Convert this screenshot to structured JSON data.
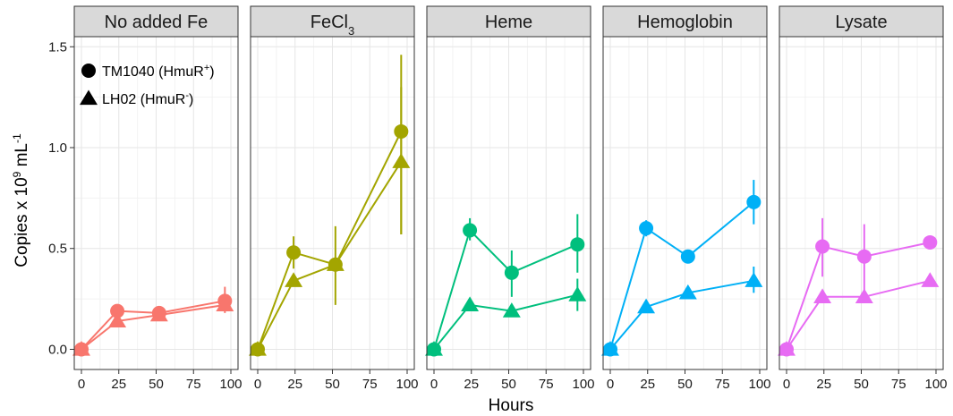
{
  "chart_data": {
    "type": "line",
    "xlabel": "Hours",
    "ylabel": {
      "main": "Copies x 10",
      "exp": "9",
      "unit": " mL",
      "unit_exp": "-1"
    },
    "xlim": [
      0,
      100
    ],
    "ylim": [
      -0.1,
      1.55
    ],
    "x_ticks": [
      0,
      25,
      50,
      75,
      100
    ],
    "y_ticks": [
      "0.0",
      "0.5",
      "1.0",
      "1.5"
    ],
    "grid": true,
    "legend": {
      "placement": "top-left",
      "entries": [
        {
          "shape": "circle",
          "label": "TM1040 (HmuR",
          "sup": "+",
          "tail": ")"
        },
        {
          "shape": "triangle",
          "label": "LH02 (HmuR",
          "sup": "-",
          "tail": ")"
        }
      ]
    },
    "panels": [
      {
        "label": "No added Fe",
        "color": "#F8766D",
        "series": [
          {
            "shape": "circle",
            "points": [
              [
                0,
                0.0
              ],
              [
                24,
                0.19
              ],
              [
                52,
                0.18
              ],
              [
                96,
                0.24
              ]
            ],
            "errors": [
              [
                0,
                0.0,
                0.01
              ],
              [
                24,
                0.175,
                0.205
              ],
              [
                52,
                0.16,
                0.2
              ],
              [
                96,
                0.18,
                0.31
              ]
            ]
          },
          {
            "shape": "triangle",
            "points": [
              [
                0,
                0.0
              ],
              [
                24,
                0.14
              ],
              [
                52,
                0.17
              ],
              [
                96,
                0.22
              ]
            ],
            "errors": [
              [
                24,
                0.13,
                0.15
              ],
              [
                52,
                0.16,
                0.18
              ]
            ]
          }
        ]
      },
      {
        "label": "FeCl",
        "label_sub": "3",
        "color": "#A3A500",
        "series": [
          {
            "shape": "circle",
            "points": [
              [
                0,
                0.0
              ],
              [
                24,
                0.48
              ],
              [
                52,
                0.42
              ],
              [
                96,
                1.08
              ]
            ],
            "errors": [
              [
                24,
                0.4,
                0.56
              ],
              [
                52,
                0.22,
                0.61
              ],
              [
                96,
                0.57,
                1.46
              ]
            ]
          },
          {
            "shape": "triangle",
            "points": [
              [
                0,
                0.0
              ],
              [
                24,
                0.34
              ],
              [
                52,
                0.42
              ],
              [
                96,
                0.93
              ]
            ],
            "errors": [
              [
                24,
                0.32,
                0.37
              ],
              [
                96,
                0.57,
                1.3
              ]
            ]
          }
        ]
      },
      {
        "label": "Heme",
        "color": "#00BF7D",
        "series": [
          {
            "shape": "circle",
            "points": [
              [
                0,
                0.0
              ],
              [
                24,
                0.59
              ],
              [
                52,
                0.38
              ],
              [
                96,
                0.52
              ]
            ],
            "errors": [
              [
                24,
                0.54,
                0.65
              ],
              [
                52,
                0.26,
                0.49
              ],
              [
                96,
                0.38,
                0.67
              ]
            ]
          },
          {
            "shape": "triangle",
            "points": [
              [
                0,
                0.0
              ],
              [
                24,
                0.22
              ],
              [
                52,
                0.19
              ],
              [
                96,
                0.27
              ]
            ],
            "errors": [
              [
                24,
                0.2,
                0.24
              ],
              [
                96,
                0.19,
                0.35
              ]
            ]
          }
        ]
      },
      {
        "label": "Hemoglobin",
        "color": "#00B0F6",
        "series": [
          {
            "shape": "circle",
            "points": [
              [
                0,
                0.0
              ],
              [
                24,
                0.6
              ],
              [
                52,
                0.46
              ],
              [
                96,
                0.73
              ]
            ],
            "errors": [
              [
                24,
                0.56,
                0.64
              ],
              [
                52,
                0.44,
                0.48
              ],
              [
                96,
                0.62,
                0.84
              ]
            ]
          },
          {
            "shape": "triangle",
            "points": [
              [
                0,
                0.0
              ],
              [
                24,
                0.21
              ],
              [
                52,
                0.28
              ],
              [
                96,
                0.34
              ]
            ],
            "errors": [
              [
                24,
                0.2,
                0.22
              ],
              [
                96,
                0.28,
                0.41
              ]
            ]
          }
        ]
      },
      {
        "label": "Lysate",
        "color": "#E76BF3",
        "series": [
          {
            "shape": "circle",
            "points": [
              [
                0,
                0.0
              ],
              [
                24,
                0.51
              ],
              [
                52,
                0.46
              ],
              [
                96,
                0.53
              ]
            ],
            "errors": [
              [
                24,
                0.36,
                0.65
              ],
              [
                52,
                0.29,
                0.62
              ],
              [
                96,
                0.51,
                0.55
              ]
            ]
          },
          {
            "shape": "triangle",
            "points": [
              [
                0,
                0.0
              ],
              [
                24,
                0.26
              ],
              [
                52,
                0.26
              ],
              [
                96,
                0.34
              ]
            ],
            "errors": [
              [
                96,
                0.32,
                0.36
              ]
            ]
          }
        ]
      }
    ]
  }
}
